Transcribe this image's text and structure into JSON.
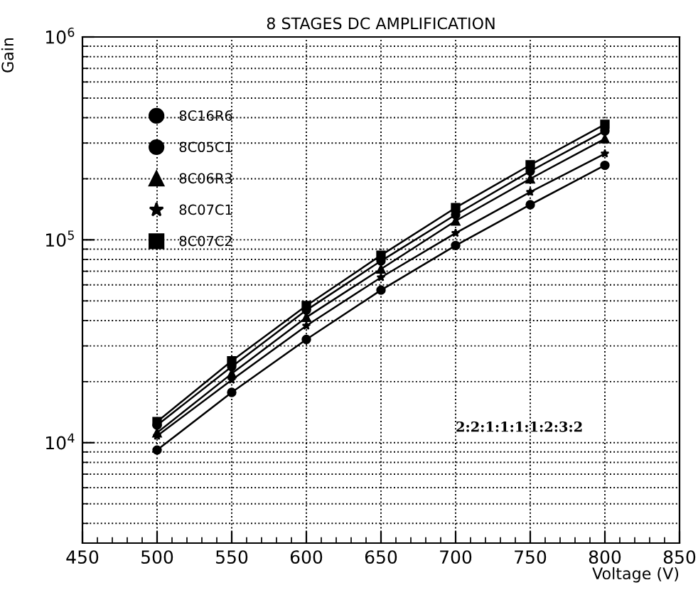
{
  "chart_data": {
    "type": "line",
    "title": "8 STAGES DC AMPLIFICATION",
    "xlabel": "Voltage (V)",
    "ylabel": "Gain",
    "log": "y",
    "x": [
      500,
      550,
      600,
      650,
      700,
      750,
      800
    ],
    "xlim": [
      450,
      850
    ],
    "xticks": [
      450,
      500,
      550,
      600,
      650,
      700,
      750,
      800,
      850
    ],
    "ylim": [
      3200,
      1000000
    ],
    "yticks": [
      {
        "value": 10000,
        "label": "10$^{4}$"
      },
      {
        "value": 100000,
        "label": "10$^{5}$"
      },
      {
        "value": 1000000,
        "label": "10$^{6}$"
      }
    ],
    "grid": true,
    "legend": "top left",
    "line_style": "solid",
    "annotations": [
      "2:2:1:1:1:1:2:3:2"
    ],
    "series": [
      {
        "name": "8C16R6",
        "color": "#000000",
        "marker": "circle",
        "values": [
          12200,
          23700,
          45000,
          78700,
          133000,
          218000,
          344000
        ]
      },
      {
        "name": "8C05C1",
        "color": "#000000",
        "marker": "circle",
        "values": [
          9200,
          17700,
          32300,
          56500,
          93800,
          149000,
          233000
        ]
      },
      {
        "name": "8C06R3",
        "color": "#000000",
        "marker": "triangle",
        "values": [
          11200,
          21900,
          41500,
          71800,
          124000,
          200000,
          315000
        ]
      },
      {
        "name": "8C07C1",
        "color": "#000000",
        "marker": "star",
        "values": [
          10800,
          20400,
          37700,
          65300,
          108000,
          172000,
          266000
        ]
      },
      {
        "name": "8C07C2",
        "color": "#000000",
        "marker": "square",
        "values": [
          12700,
          25300,
          47400,
          83900,
          144000,
          234000,
          371000
        ]
      }
    ]
  }
}
